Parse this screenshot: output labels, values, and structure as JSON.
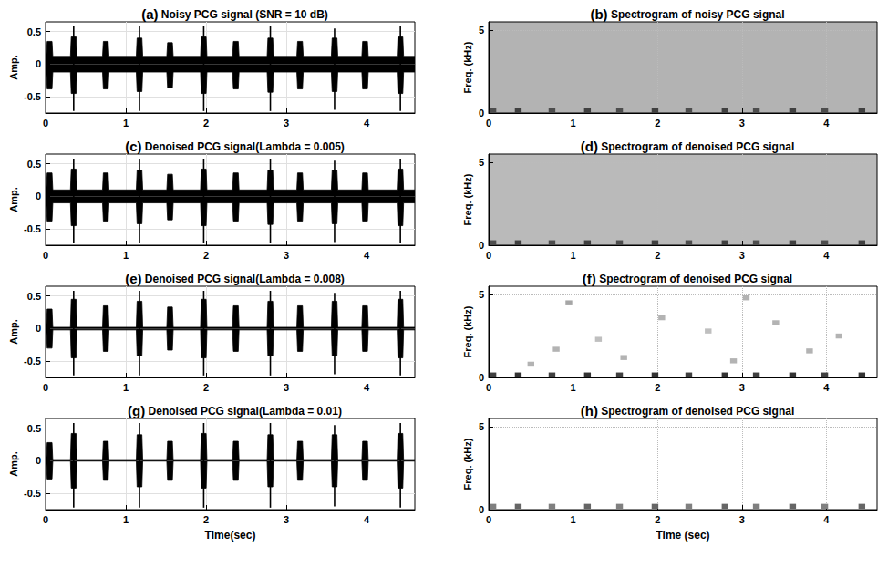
{
  "chart_data": [
    {
      "type": "line",
      "title": "(a) Noisy PCG signal (SNR = 10 dB)",
      "ylabel": "Amp.",
      "color": "#000000",
      "grid": true,
      "xlim": [
        0,
        4.6
      ],
      "xticks": [
        0,
        1,
        2,
        3,
        4
      ],
      "ylim": [
        -0.75,
        0.65
      ],
      "yticks": [
        -0.5,
        0,
        0.5
      ],
      "x": [
        0,
        0.01,
        0.02,
        0.08,
        0.09,
        0.31,
        0.32,
        0.38,
        0.39,
        0.71,
        0.72,
        0.78,
        0.79,
        1.13,
        1.14,
        1.2,
        1.21,
        1.51,
        1.52,
        1.58,
        1.59,
        1.93,
        1.94,
        2,
        2.01,
        2.33,
        2.34,
        2.4,
        2.41,
        2.76,
        2.77,
        2.83,
        2.84,
        3.13,
        3.14,
        3.2,
        3.21,
        3.56,
        3.57,
        3.63,
        3.64,
        3.94,
        3.95,
        4.01,
        4.02,
        4.38,
        4.39,
        4.45,
        4.46,
        4.6
      ],
      "upper": [
        0.12,
        0.12,
        0.35,
        0.35,
        0.12,
        0.12,
        0.42,
        0.42,
        0.12,
        0.12,
        0.35,
        0.35,
        0.12,
        0.12,
        0.4,
        0.4,
        0.12,
        0.12,
        0.33,
        0.33,
        0.12,
        0.12,
        0.42,
        0.42,
        0.12,
        0.12,
        0.35,
        0.35,
        0.12,
        0.12,
        0.4,
        0.4,
        0.12,
        0.12,
        0.35,
        0.35,
        0.12,
        0.12,
        0.4,
        0.4,
        0.12,
        0.12,
        0.35,
        0.35,
        0.12,
        0.12,
        0.42,
        0.42,
        0.12,
        0.12
      ],
      "lower": [
        -0.12,
        -0.12,
        -0.38,
        -0.38,
        -0.12,
        -0.12,
        -0.45,
        -0.45,
        -0.12,
        -0.12,
        -0.38,
        -0.38,
        -0.12,
        -0.12,
        -0.42,
        -0.42,
        -0.12,
        -0.12,
        -0.36,
        -0.36,
        -0.12,
        -0.12,
        -0.45,
        -0.45,
        -0.12,
        -0.12,
        -0.38,
        -0.38,
        -0.12,
        -0.12,
        -0.43,
        -0.43,
        -0.12,
        -0.12,
        -0.38,
        -0.38,
        -0.12,
        -0.12,
        -0.42,
        -0.42,
        -0.12,
        -0.12,
        -0.38,
        -0.38,
        -0.12,
        -0.12,
        -0.45,
        -0.45,
        -0.12,
        -0.12
      ],
      "spikes": {
        "x": [
          0.35,
          1.17,
          1.97,
          2.8,
          3.6,
          4.42
        ],
        "upper": [
          0.58,
          0.58,
          0.58,
          0.58,
          0.55,
          0.58
        ],
        "lower": [
          -0.72,
          -0.72,
          -0.72,
          -0.72,
          -0.7,
          -0.72
        ]
      }
    },
    {
      "type": "heatmap",
      "title": "(b) Spectrogram of noisy PCG signal",
      "ylabel": "Freq. (kHz)",
      "grid": true,
      "xlim": [
        0,
        4.6
      ],
      "xticks": [
        0,
        1,
        2,
        3,
        4
      ],
      "ylim": [
        0,
        5.5
      ],
      "yticks": [
        0,
        5
      ],
      "intensity_range": [
        0,
        1
      ],
      "background_intensity": 0.3,
      "cell_width": 0.08,
      "cell_height": 0.3,
      "cells": {
        "t": [
          0.05,
          0.35,
          0.75,
          1.17,
          1.55,
          1.97,
          2.37,
          2.8,
          3.17,
          3.6,
          3.98,
          4.42
        ],
        "f": [
          0.15,
          0.15,
          0.15,
          0.15,
          0.15,
          0.15,
          0.15,
          0.15,
          0.15,
          0.15,
          0.15,
          0.15
        ],
        "intensity": [
          0.7,
          0.75,
          0.7,
          0.75,
          0.7,
          0.75,
          0.7,
          0.75,
          0.7,
          0.75,
          0.7,
          0.75
        ]
      }
    },
    {
      "type": "line",
      "title": "(c) Denoised PCG signal(Lambda = 0.005)",
      "ylabel": "Amp.",
      "color": "#000000",
      "grid": true,
      "xlim": [
        0,
        4.6
      ],
      "xticks": [
        0,
        1,
        2,
        3,
        4
      ],
      "ylim": [
        -0.75,
        0.65
      ],
      "yticks": [
        -0.5,
        0,
        0.5
      ],
      "x": [
        0,
        0.01,
        0.02,
        0.08,
        0.09,
        0.31,
        0.32,
        0.38,
        0.39,
        0.71,
        0.72,
        0.78,
        0.79,
        1.13,
        1.14,
        1.2,
        1.21,
        1.51,
        1.52,
        1.58,
        1.59,
        1.93,
        1.94,
        2,
        2.01,
        2.33,
        2.34,
        2.4,
        2.41,
        2.76,
        2.77,
        2.83,
        2.84,
        3.13,
        3.14,
        3.2,
        3.21,
        3.56,
        3.57,
        3.63,
        3.64,
        3.94,
        3.95,
        4.01,
        4.02,
        4.38,
        4.39,
        4.45,
        4.46,
        4.6
      ],
      "upper": [
        0.1,
        0.1,
        0.36,
        0.36,
        0.1,
        0.1,
        0.42,
        0.42,
        0.1,
        0.1,
        0.36,
        0.36,
        0.1,
        0.1,
        0.4,
        0.4,
        0.1,
        0.1,
        0.34,
        0.34,
        0.1,
        0.1,
        0.42,
        0.42,
        0.1,
        0.1,
        0.36,
        0.36,
        0.1,
        0.1,
        0.4,
        0.4,
        0.1,
        0.1,
        0.36,
        0.36,
        0.1,
        0.1,
        0.4,
        0.4,
        0.1,
        0.1,
        0.36,
        0.36,
        0.1,
        0.1,
        0.42,
        0.42,
        0.1,
        0.1
      ],
      "lower": [
        -0.1,
        -0.1,
        -0.38,
        -0.38,
        -0.1,
        -0.1,
        -0.45,
        -0.45,
        -0.1,
        -0.1,
        -0.38,
        -0.38,
        -0.1,
        -0.1,
        -0.42,
        -0.42,
        -0.1,
        -0.1,
        -0.36,
        -0.36,
        -0.1,
        -0.1,
        -0.45,
        -0.45,
        -0.1,
        -0.1,
        -0.38,
        -0.38,
        -0.1,
        -0.1,
        -0.43,
        -0.43,
        -0.1,
        -0.1,
        -0.38,
        -0.38,
        -0.1,
        -0.1,
        -0.42,
        -0.42,
        -0.1,
        -0.1,
        -0.38,
        -0.38,
        -0.1,
        -0.1,
        -0.45,
        -0.45,
        -0.1,
        -0.1
      ],
      "spikes": {
        "x": [
          0.35,
          1.17,
          1.97,
          2.8,
          3.6,
          4.42
        ],
        "upper": [
          0.58,
          0.58,
          0.58,
          0.58,
          0.55,
          0.58
        ],
        "lower": [
          -0.72,
          -0.72,
          -0.72,
          -0.72,
          -0.7,
          -0.72
        ]
      }
    },
    {
      "type": "heatmap",
      "title": "(d) Spectrogram of denoised PCG signal",
      "ylabel": "Freq. (kHz)",
      "grid": true,
      "xlim": [
        0,
        4.6
      ],
      "xticks": [
        0,
        1,
        2,
        3,
        4
      ],
      "ylim": [
        0,
        5.5
      ],
      "yticks": [
        0,
        5
      ],
      "intensity_range": [
        0,
        1
      ],
      "background_intensity": 0.27,
      "cell_width": 0.08,
      "cell_height": 0.3,
      "cells": {
        "t": [
          0.05,
          0.35,
          0.75,
          1.17,
          1.55,
          1.97,
          2.37,
          2.8,
          3.17,
          3.6,
          3.98,
          4.42
        ],
        "f": [
          0.15,
          0.15,
          0.15,
          0.15,
          0.15,
          0.15,
          0.15,
          0.15,
          0.15,
          0.15,
          0.15,
          0.15
        ],
        "intensity": [
          0.7,
          0.75,
          0.7,
          0.75,
          0.7,
          0.75,
          0.7,
          0.75,
          0.7,
          0.75,
          0.7,
          0.75
        ]
      }
    },
    {
      "type": "line",
      "title": "(e) Denoised PCG signal(Lambda = 0.008)",
      "ylabel": "Amp.",
      "color": "#000000",
      "grid": true,
      "xlim": [
        0,
        4.6
      ],
      "xticks": [
        0,
        1,
        2,
        3,
        4
      ],
      "ylim": [
        -0.75,
        0.65
      ],
      "yticks": [
        -0.5,
        0,
        0.5
      ],
      "x": [
        0,
        0.01,
        0.02,
        0.08,
        0.09,
        0.31,
        0.32,
        0.38,
        0.39,
        0.71,
        0.72,
        0.78,
        0.79,
        1.13,
        1.14,
        1.2,
        1.21,
        1.51,
        1.52,
        1.58,
        1.59,
        1.93,
        1.94,
        2,
        2.01,
        2.33,
        2.34,
        2.4,
        2.41,
        2.76,
        2.77,
        2.83,
        2.84,
        3.13,
        3.14,
        3.2,
        3.21,
        3.56,
        3.57,
        3.63,
        3.64,
        3.94,
        3.95,
        4.01,
        4.02,
        4.38,
        4.39,
        4.45,
        4.46,
        4.6
      ],
      "upper": [
        0.02,
        0.02,
        0.3,
        0.3,
        0.02,
        0.02,
        0.45,
        0.45,
        0.02,
        0.02,
        0.35,
        0.35,
        0.02,
        0.02,
        0.42,
        0.42,
        0.02,
        0.02,
        0.33,
        0.33,
        0.02,
        0.02,
        0.45,
        0.45,
        0.02,
        0.02,
        0.35,
        0.35,
        0.02,
        0.02,
        0.42,
        0.42,
        0.02,
        0.02,
        0.35,
        0.35,
        0.02,
        0.02,
        0.42,
        0.42,
        0.02,
        0.02,
        0.35,
        0.35,
        0.02,
        0.02,
        0.45,
        0.45,
        0.02,
        0.02
      ],
      "lower": [
        -0.02,
        -0.02,
        -0.3,
        -0.3,
        -0.02,
        -0.02,
        -0.45,
        -0.45,
        -0.02,
        -0.02,
        -0.35,
        -0.35,
        -0.02,
        -0.02,
        -0.42,
        -0.42,
        -0.02,
        -0.02,
        -0.33,
        -0.33,
        -0.02,
        -0.02,
        -0.45,
        -0.45,
        -0.02,
        -0.02,
        -0.35,
        -0.35,
        -0.02,
        -0.02,
        -0.42,
        -0.42,
        -0.02,
        -0.02,
        -0.35,
        -0.35,
        -0.02,
        -0.02,
        -0.42,
        -0.42,
        -0.02,
        -0.02,
        -0.35,
        -0.35,
        -0.02,
        -0.02,
        -0.45,
        -0.45,
        -0.02,
        -0.02
      ],
      "spikes": {
        "x": [
          0.35,
          1.17,
          1.97,
          2.8,
          3.6,
          4.42
        ],
        "upper": [
          0.58,
          0.58,
          0.58,
          0.58,
          0.55,
          0.58
        ],
        "lower": [
          -0.72,
          -0.72,
          -0.72,
          -0.72,
          -0.7,
          -0.72
        ]
      }
    },
    {
      "type": "heatmap",
      "title": "(f) Spectrogram of denoised PCG signal",
      "ylabel": "Freq. (kHz)",
      "grid": true,
      "xlim": [
        0,
        4.6
      ],
      "xticks": [
        0,
        1,
        2,
        3,
        4
      ],
      "ylim": [
        0,
        5.5
      ],
      "yticks": [
        0,
        5
      ],
      "intensity_range": [
        0,
        1
      ],
      "background_intensity": 0,
      "cell_width": 0.08,
      "cell_height": 0.3,
      "cells": {
        "t": [
          0.05,
          0.35,
          0.75,
          1.17,
          1.55,
          1.97,
          2.37,
          2.8,
          3.17,
          3.6,
          3.98,
          4.42,
          0.95,
          0.8,
          1.6,
          2.05,
          2.6,
          3.05,
          3.4,
          3.8,
          4.15,
          1.3,
          0.5,
          2.9
        ],
        "f": [
          0.15,
          0.15,
          0.15,
          0.15,
          0.15,
          0.15,
          0.15,
          0.15,
          0.15,
          0.15,
          0.15,
          0.15,
          4.5,
          1.7,
          1.2,
          3.6,
          2.8,
          4.8,
          3.3,
          1.6,
          2.5,
          2.3,
          0.8,
          1.0
        ],
        "intensity": [
          0.75,
          0.8,
          0.75,
          0.8,
          0.75,
          0.8,
          0.75,
          0.8,
          0.75,
          0.8,
          0.75,
          0.8,
          0.35,
          0.3,
          0.3,
          0.3,
          0.25,
          0.3,
          0.3,
          0.3,
          0.3,
          0.25,
          0.3,
          0.3
        ]
      }
    },
    {
      "type": "line",
      "title": "(g) Denoised PCG signal(Lambda = 0.01)",
      "xlabel": "Time(sec)",
      "ylabel": "Amp.",
      "color": "#000000",
      "grid": true,
      "xlim": [
        0,
        4.6
      ],
      "xticks": [
        0,
        1,
        2,
        3,
        4
      ],
      "ylim": [
        -0.75,
        0.65
      ],
      "yticks": [
        -0.5,
        0,
        0.5
      ],
      "x": [
        0,
        0.01,
        0.02,
        0.08,
        0.09,
        0.31,
        0.32,
        0.38,
        0.39,
        0.71,
        0.72,
        0.78,
        0.79,
        1.13,
        1.14,
        1.2,
        1.21,
        1.51,
        1.52,
        1.58,
        1.59,
        1.93,
        1.94,
        2,
        2.01,
        2.33,
        2.34,
        2.4,
        2.41,
        2.76,
        2.77,
        2.83,
        2.84,
        3.13,
        3.14,
        3.2,
        3.21,
        3.56,
        3.57,
        3.63,
        3.64,
        3.94,
        3.95,
        4.01,
        4.02,
        4.38,
        4.39,
        4.45,
        4.46,
        4.6
      ],
      "upper": [
        0.005,
        0.005,
        0.28,
        0.28,
        0.005,
        0.005,
        0.42,
        0.42,
        0.005,
        0.005,
        0.3,
        0.3,
        0.005,
        0.005,
        0.4,
        0.4,
        0.005,
        0.005,
        0.3,
        0.3,
        0.005,
        0.005,
        0.42,
        0.42,
        0.005,
        0.005,
        0.3,
        0.3,
        0.005,
        0.005,
        0.4,
        0.4,
        0.005,
        0.005,
        0.3,
        0.3,
        0.005,
        0.005,
        0.4,
        0.4,
        0.005,
        0.005,
        0.3,
        0.3,
        0.005,
        0.005,
        0.42,
        0.42,
        0.005,
        0.005
      ],
      "lower": [
        -0.005,
        -0.005,
        -0.28,
        -0.28,
        -0.005,
        -0.005,
        -0.42,
        -0.42,
        -0.005,
        -0.005,
        -0.3,
        -0.3,
        -0.005,
        -0.005,
        -0.4,
        -0.4,
        -0.005,
        -0.005,
        -0.3,
        -0.3,
        -0.005,
        -0.005,
        -0.42,
        -0.42,
        -0.005,
        -0.005,
        -0.3,
        -0.3,
        -0.005,
        -0.005,
        -0.4,
        -0.4,
        -0.005,
        -0.005,
        -0.3,
        -0.3,
        -0.005,
        -0.005,
        -0.4,
        -0.4,
        -0.005,
        -0.005,
        -0.3,
        -0.3,
        -0.005,
        -0.005,
        -0.42,
        -0.42,
        -0.005,
        -0.005
      ],
      "spikes": {
        "x": [
          0.35,
          1.17,
          1.97,
          2.8,
          3.6,
          4.42
        ],
        "upper": [
          0.58,
          0.58,
          0.58,
          0.58,
          0.55,
          0.58
        ],
        "lower": [
          -0.72,
          -0.72,
          -0.72,
          -0.72,
          -0.7,
          -0.72
        ]
      }
    },
    {
      "type": "heatmap",
      "title": "(h) Spectrogram of denoised PCG signal",
      "xlabel": "Time (sec)",
      "ylabel": "Freq. (kHz)",
      "grid": true,
      "xlim": [
        0,
        4.6
      ],
      "xticks": [
        0,
        1,
        2,
        3,
        4
      ],
      "ylim": [
        0,
        5.5
      ],
      "yticks": [
        0,
        5
      ],
      "intensity_range": [
        0,
        1
      ],
      "background_intensity": 0,
      "cell_width": 0.08,
      "cell_height": 0.3,
      "cells": {
        "t": [
          0.05,
          0.35,
          0.75,
          1.17,
          1.55,
          1.97,
          2.37,
          2.8,
          3.17,
          3.6,
          3.98,
          4.42
        ],
        "f": [
          0.2,
          0.2,
          0.2,
          0.2,
          0.2,
          0.2,
          0.2,
          0.2,
          0.2,
          0.2,
          0.2,
          0.2
        ],
        "intensity": [
          0.5,
          0.6,
          0.5,
          0.6,
          0.5,
          0.6,
          0.5,
          0.6,
          0.5,
          0.6,
          0.5,
          0.6
        ]
      }
    }
  ]
}
